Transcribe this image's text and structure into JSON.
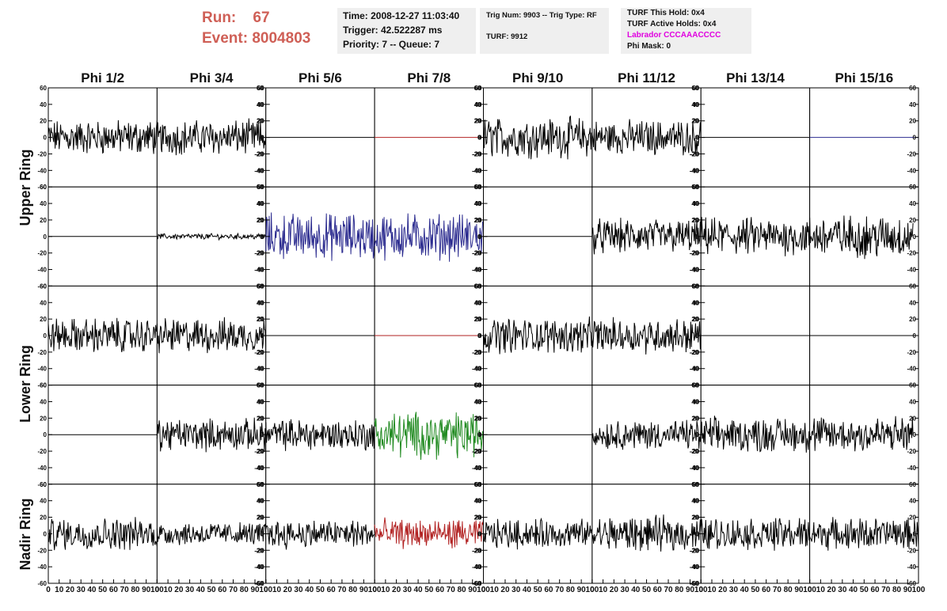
{
  "header": {
    "run_label": "Run:",
    "run_value": "67",
    "event_label": "Event:",
    "event_value": "8004803",
    "time_line": "Time: 2008-12-27 11:03:40",
    "trigger_line": "Trigger: 42.522287 ms",
    "priority_line": "Priority: 7 -- Queue: 7",
    "trig_num_line": "Trig Num: 9903 -- Trig Type: RF",
    "turf_line": "TURF: 9912",
    "turf_this_hold": "TURF This Hold: 0x4",
    "turf_active_holds": "TURF Active Holds: 0x4",
    "labrador": "Labrador CCCAAACCCC",
    "phi_mask": "Phi Mask: 0",
    "labrador_color": "#e000e0",
    "run_color": "#cf5f56"
  },
  "chart_data": {
    "type": "line",
    "columns": [
      "Phi 1/2",
      "Phi 3/4",
      "Phi 5/6",
      "Phi 7/8",
      "Phi 9/10",
      "Phi 11/12",
      "Phi 13/14",
      "Phi 15/16"
    ],
    "ring_labels": [
      "Upper Ring",
      "Lower Ring",
      "Nadir Ring"
    ],
    "ylim": [
      -60,
      60
    ],
    "yticks": [
      "60",
      "40",
      "20",
      "0",
      "-20",
      "-40",
      "-60"
    ],
    "xlim": [
      0,
      100
    ],
    "xticks": [
      "0",
      "10",
      "20",
      "30",
      "40",
      "50",
      "60",
      "70",
      "80",
      "90",
      "100"
    ],
    "colors": {
      "black": "#000000",
      "blue": "#2b2b8f",
      "red": "#b22222",
      "green": "#228b22"
    },
    "rows": [
      [
        {
          "color": "black",
          "amp": 12,
          "len": 100
        },
        {
          "color": "black",
          "amp": 12,
          "len": 100
        },
        {
          "color": "black",
          "amp": 0,
          "len": 100
        },
        {
          "color": "red",
          "amp": 0,
          "len": 100
        },
        {
          "color": "black",
          "amp": 14,
          "len": 100
        },
        {
          "color": "black",
          "amp": 12,
          "len": 100
        },
        {
          "color": "black",
          "amp": 0,
          "len": 100
        },
        {
          "color": "blue",
          "amp": 0,
          "len": 100
        }
      ],
      [
        {
          "color": "black",
          "amp": 0,
          "len": 100
        },
        {
          "color": "black",
          "amp": 2,
          "len": 100
        },
        {
          "color": "blue",
          "amp": 16,
          "len": 100
        },
        {
          "color": "blue",
          "amp": 16,
          "len": 100
        },
        {
          "color": "black",
          "amp": 0,
          "len": 100
        },
        {
          "color": "black",
          "amp": 12,
          "len": 100
        },
        {
          "color": "black",
          "amp": 13,
          "len": 100
        },
        {
          "color": "black",
          "amp": 15,
          "len": 95
        }
      ],
      [
        {
          "color": "black",
          "amp": 12,
          "len": 100
        },
        {
          "color": "black",
          "amp": 12,
          "len": 100
        },
        {
          "color": "black",
          "amp": 0,
          "len": 100
        },
        {
          "color": "red",
          "amp": 0,
          "len": 100
        },
        {
          "color": "black",
          "amp": 12,
          "len": 100
        },
        {
          "color": "black",
          "amp": 12,
          "len": 100
        },
        {
          "color": "black",
          "amp": 0,
          "len": 100
        },
        {
          "color": "black",
          "amp": 0,
          "len": 100
        }
      ],
      [
        {
          "color": "black",
          "amp": 0,
          "len": 100
        },
        {
          "color": "black",
          "amp": 11,
          "len": 100
        },
        {
          "color": "black",
          "amp": 11,
          "len": 100
        },
        {
          "color": "green",
          "amp": 16,
          "len": 100
        },
        {
          "color": "black",
          "amp": 0,
          "len": 100
        },
        {
          "color": "black",
          "amp": 10,
          "len": 100
        },
        {
          "color": "black",
          "amp": 12,
          "len": 100
        },
        {
          "color": "black",
          "amp": 13,
          "len": 95
        }
      ],
      [
        {
          "color": "black",
          "amp": 11,
          "len": 100
        },
        {
          "color": "black",
          "amp": 8,
          "len": 100
        },
        {
          "color": "black",
          "amp": 10,
          "len": 100
        },
        {
          "color": "red",
          "amp": 10,
          "len": 100
        },
        {
          "color": "black",
          "amp": 10,
          "len": 100
        },
        {
          "color": "black",
          "amp": 12,
          "len": 100
        },
        {
          "color": "black",
          "amp": 11,
          "len": 100
        },
        {
          "color": "black",
          "amp": 11,
          "len": 100
        }
      ]
    ]
  }
}
